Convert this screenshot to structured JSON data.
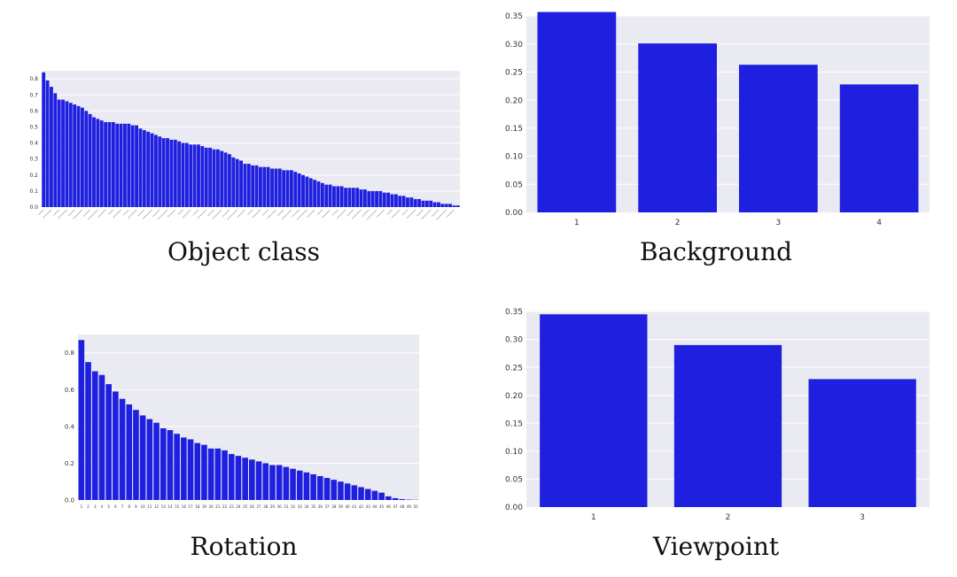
{
  "colors": {
    "bar": "#1f1fe0",
    "panel": "#eaeaf2",
    "grid": "#ffffff",
    "text": "#333333"
  },
  "chart_data": [
    {
      "id": "object_class",
      "type": "bar",
      "title": "Object class",
      "xlabel": "",
      "ylabel": "",
      "ylim": [
        0,
        0.85
      ],
      "grid": true,
      "yticks": [
        "0.0",
        "0.1",
        "0.2",
        "0.3",
        "0.4",
        "0.5",
        "0.6",
        "0.7",
        "0.8"
      ],
      "categories_note": "≈100 object-class categories; rotated tick labels are illegible",
      "values": [
        0.84,
        0.79,
        0.75,
        0.71,
        0.67,
        0.67,
        0.66,
        0.65,
        0.64,
        0.63,
        0.62,
        0.6,
        0.58,
        0.56,
        0.55,
        0.54,
        0.53,
        0.53,
        0.53,
        0.52,
        0.52,
        0.52,
        0.52,
        0.51,
        0.51,
        0.49,
        0.48,
        0.47,
        0.46,
        0.45,
        0.44,
        0.43,
        0.43,
        0.42,
        0.42,
        0.41,
        0.4,
        0.4,
        0.39,
        0.39,
        0.39,
        0.38,
        0.37,
        0.37,
        0.36,
        0.36,
        0.35,
        0.34,
        0.33,
        0.31,
        0.3,
        0.29,
        0.27,
        0.27,
        0.26,
        0.26,
        0.25,
        0.25,
        0.25,
        0.24,
        0.24,
        0.24,
        0.23,
        0.23,
        0.23,
        0.22,
        0.21,
        0.2,
        0.19,
        0.18,
        0.17,
        0.16,
        0.15,
        0.14,
        0.14,
        0.13,
        0.13,
        0.13,
        0.12,
        0.12,
        0.12,
        0.12,
        0.11,
        0.11,
        0.1,
        0.1,
        0.1,
        0.1,
        0.09,
        0.09,
        0.08,
        0.08,
        0.07,
        0.07,
        0.06,
        0.06,
        0.05,
        0.05,
        0.04,
        0.04,
        0.04,
        0.03,
        0.03,
        0.02,
        0.02,
        0.02,
        0.01,
        0.01
      ]
    },
    {
      "id": "background",
      "type": "bar",
      "title": "Background",
      "xlabel": "",
      "ylabel": "",
      "ylim": [
        0,
        0.35
      ],
      "grid": true,
      "yticks": [
        "0.00",
        "0.05",
        "0.10",
        "0.15",
        "0.20",
        "0.25",
        "0.30",
        "0.35"
      ],
      "categories": [
        "1",
        "2",
        "3",
        "4"
      ],
      "values": [
        0.357,
        0.301,
        0.263,
        0.228
      ]
    },
    {
      "id": "rotation",
      "type": "bar",
      "title": "Rotation",
      "xlabel": "",
      "ylabel": "",
      "ylim": [
        0,
        0.9
      ],
      "grid": true,
      "yticks": [
        "0.0",
        "0.2",
        "0.4",
        "0.6",
        "0.8"
      ],
      "categories": [
        "1",
        "2",
        "3",
        "4",
        "5",
        "6",
        "7",
        "8",
        "9",
        "10",
        "11",
        "12",
        "13",
        "14",
        "15",
        "16",
        "17",
        "18",
        "19",
        "20",
        "21",
        "22",
        "23",
        "24",
        "25",
        "26",
        "27",
        "28",
        "29",
        "30",
        "31",
        "32",
        "33",
        "34",
        "35",
        "36",
        "37",
        "38",
        "39",
        "40",
        "41",
        "42",
        "43",
        "44",
        "45",
        "46",
        "47",
        "48",
        "49",
        "50"
      ],
      "values": [
        0.87,
        0.75,
        0.7,
        0.68,
        0.63,
        0.59,
        0.55,
        0.52,
        0.49,
        0.46,
        0.44,
        0.42,
        0.39,
        0.38,
        0.36,
        0.34,
        0.33,
        0.31,
        0.3,
        0.28,
        0.28,
        0.27,
        0.25,
        0.24,
        0.23,
        0.22,
        0.21,
        0.2,
        0.19,
        0.19,
        0.18,
        0.17,
        0.16,
        0.15,
        0.14,
        0.13,
        0.12,
        0.11,
        0.1,
        0.09,
        0.08,
        0.07,
        0.06,
        0.05,
        0.04,
        0.02,
        0.01,
        0.005,
        0.002,
        0.001
      ]
    },
    {
      "id": "viewpoint",
      "type": "bar",
      "title": "Viewpoint",
      "xlabel": "",
      "ylabel": "",
      "ylim": [
        0,
        0.35
      ],
      "grid": true,
      "yticks": [
        "0.00",
        "0.05",
        "0.10",
        "0.15",
        "0.20",
        "0.25",
        "0.30",
        "0.35"
      ],
      "categories": [
        "1",
        "2",
        "3"
      ],
      "values": [
        0.345,
        0.29,
        0.229
      ]
    }
  ]
}
